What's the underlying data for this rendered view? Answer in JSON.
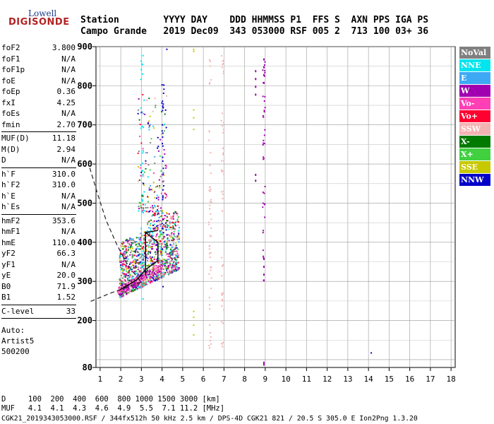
{
  "logo": {
    "line1": "Lowell",
    "line2": "DIGISONDE"
  },
  "header": {
    "labels": "Station        YYYY DAY    DDD HHMMSS P1  FFS S  AXN PPS IGA PS",
    "values": "Campo Grande   2019 Dec09  343 053000 RSF 005 2  713 100 03+ 36"
  },
  "params": {
    "group1": [
      [
        "foF2",
        "3.800"
      ],
      [
        "foF1",
        "N/A"
      ],
      [
        "foF1p",
        "N/A"
      ],
      [
        "foE",
        "N/A"
      ],
      [
        "foEp",
        "0.36"
      ],
      [
        "fxI",
        "4.25"
      ],
      [
        "foEs",
        "N/A"
      ],
      [
        "fmin",
        "2.70"
      ]
    ],
    "group2": [
      [
        "MUF(D)",
        "11.18"
      ],
      [
        "M(D)",
        "2.94"
      ],
      [
        "D",
        "N/A"
      ]
    ],
    "group3": [
      [
        "h`F",
        "310.0"
      ],
      [
        "h`F2",
        "310.0"
      ],
      [
        "h`E",
        "N/A"
      ],
      [
        "h`Es",
        "N/A"
      ]
    ],
    "group4": [
      [
        "hmF2",
        "353.6"
      ],
      [
        "hmF1",
        "N/A"
      ],
      [
        "hmE",
        "110.0"
      ],
      [
        "yF2",
        "66.3"
      ],
      [
        "yF1",
        "N/A"
      ],
      [
        "yE",
        "20.0"
      ],
      [
        "B0",
        "71.9"
      ],
      [
        "B1",
        "1.52"
      ]
    ],
    "group5": [
      [
        "C-level",
        "33"
      ]
    ],
    "auto": [
      "Auto:",
      "Artist5",
      "500200"
    ]
  },
  "legend": [
    {
      "label": "NoVal",
      "color": "#808080"
    },
    {
      "label": "NNE",
      "color": "#00e5ee"
    },
    {
      "label": "E",
      "color": "#3da9f5"
    },
    {
      "label": "W",
      "color": "#a000b0"
    },
    {
      "label": "Vo-",
      "color": "#ff3fb5"
    },
    {
      "label": "Vo+",
      "color": "#ff0030"
    },
    {
      "label": "SSW",
      "color": "#f4b3b3"
    },
    {
      "label": "X-",
      "color": "#007a00"
    },
    {
      "label": "X+",
      "color": "#40d040"
    },
    {
      "label": "SSE",
      "color": "#c8c800"
    },
    {
      "label": "NNW",
      "color": "#0000c8"
    }
  ],
  "footer": {
    "line1": "D     100  200  400  600  800 1000 1500 3000 [km]",
    "line2": "MUF   4.1  4.1  4.3  4.6  4.9  5.5  7.1 11.2 [MHz]",
    "line3": "CGK21_2019343053000.RSF / 344fx512h 50 kHz 2.5 km / DPS-4D CGK21 821 / 20.5 S 305.0 E Ion2Png 1.3.20"
  },
  "chart_data": {
    "type": "scatter",
    "x": {
      "min": 1,
      "max": 18,
      "ticks": [
        1,
        2,
        3,
        4,
        5,
        6,
        7,
        8,
        9,
        10,
        11,
        12,
        13,
        14,
        15,
        16,
        17,
        18
      ],
      "label": ""
    },
    "y": {
      "min": 80,
      "max": 900,
      "ticks": [
        80,
        200,
        300,
        400,
        500,
        600,
        700,
        800,
        900
      ],
      "label": ""
    },
    "grid": true,
    "legend_position": "right",
    "trace_profile": [
      [
        2.0,
        280
      ],
      [
        2.4,
        292
      ],
      [
        2.8,
        305
      ],
      [
        3.0,
        318
      ],
      [
        3.2,
        330
      ],
      [
        3.5,
        342
      ],
      [
        3.8,
        353
      ],
      [
        3.8,
        400
      ],
      [
        3.2,
        425
      ],
      [
        3.8,
        430
      ]
    ],
    "dashed_curve": [
      [
        0.5,
        590
      ],
      [
        0.9,
        520
      ],
      [
        1.3,
        455
      ],
      [
        1.8,
        395
      ],
      [
        2.3,
        345
      ],
      [
        2.8,
        310
      ],
      [
        3.0,
        298
      ],
      [
        1.5,
        270
      ],
      [
        0.5,
        248
      ]
    ],
    "vertical_tracks": [
      {
        "x": 3.0,
        "y_from": 250,
        "y_to": 880,
        "color": "NNE"
      },
      {
        "x": 4.0,
        "y_from": 250,
        "y_to": 820,
        "color": "NNW"
      },
      {
        "x": 6.9,
        "y_from": 110,
        "y_to": 880,
        "color": "SSW"
      },
      {
        "x": 8.9,
        "y_from": 300,
        "y_to": 880,
        "color": "W"
      },
      {
        "x": 6.3,
        "y_from": 120,
        "y_to": 880,
        "color": "SSW"
      }
    ]
  }
}
